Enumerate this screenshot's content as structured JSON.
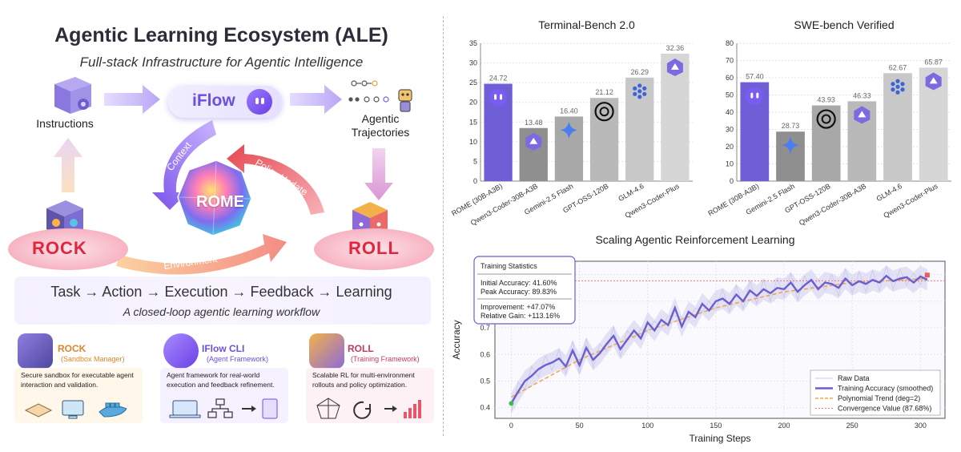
{
  "ecosystem": {
    "title": "Agentic Learning Ecosystem (ALE)",
    "subtitle": "Full-stack Infrastructure for Agentic Intelligence",
    "nodes": {
      "instructions": "Instructions",
      "iflow": "iFlow",
      "trajectories_line1": "Agentic",
      "trajectories_line2": "Trajectories",
      "rome": "ROME",
      "rock": "ROCK",
      "roll": "ROLL"
    },
    "arrows": {
      "context": "Context",
      "policy_update": "Policy Update",
      "environment": "Environment"
    },
    "workflow": "Task → Action → Execution → Feedback → Learning",
    "workflow_caption": "A closed-loop agentic learning workflow",
    "cards": [
      {
        "title": "ROCK",
        "subtitle": "(Sandbox Manager)",
        "desc": "Secure sandbox for executable agent interaction and validation.",
        "color": "#f4a340",
        "bg": "#fde7c7"
      },
      {
        "title": "IFlow CLI",
        "subtitle": "(Agent Framework)",
        "desc": "Agent framework for real-world execution and feedback refinement.",
        "color": "#6a4fe0",
        "bg": "#e6dcfb"
      },
      {
        "title": "ROLL",
        "subtitle": "(Training Framework)",
        "desc": "Scalable RL for multi-environment rollouts and policy optimization.",
        "color": "#c23a5a",
        "bg": "#f8d3dd"
      }
    ]
  },
  "chart_data": [
    {
      "type": "bar",
      "title": "Terminal-Bench 2.0",
      "categories": [
        "ROME (30B-A3B)",
        "Qwen3-Coder-30B-A3B",
        "Gemini-2.5 Flash",
        "GPT-OSS-120B",
        "GLM-4.6",
        "Qwen3-Coder-Plus"
      ],
      "values": [
        24.72,
        13.48,
        16.4,
        21.12,
        26.29,
        32.36
      ],
      "value_labels": [
        "24.72",
        "13.48",
        "16.40",
        "21.12",
        "26.29",
        "32.36"
      ],
      "colors": [
        "#6f5fd6",
        "#8f8f8f",
        "#a8a8a8",
        "#b9b9b9",
        "#c8c8c8",
        "#d6d6d6"
      ],
      "icons": [
        "iflow-icon",
        "qwen-icon",
        "gemini-icon",
        "openai-icon",
        "glm-icon",
        "qwen-icon"
      ],
      "ylim": [
        0,
        35
      ],
      "yticks": [
        0,
        5,
        10,
        15,
        20,
        25,
        30,
        35
      ],
      "grid": true
    },
    {
      "type": "bar",
      "title": "SWE-bench Verified",
      "categories": [
        "ROME (30B-A3B)",
        "Gemini-2.5 Flash",
        "GPT-OSS-120B",
        "Qwen3-Coder-30B-A3B",
        "GLM-4.6",
        "Qwen3-Coder-Plus"
      ],
      "values": [
        57.4,
        28.73,
        43.93,
        46.33,
        62.67,
        65.87
      ],
      "value_labels": [
        "57.40",
        "28.73",
        "43.93",
        "46.33",
        "62.67",
        "65.87"
      ],
      "colors": [
        "#6f5fd6",
        "#8f8f8f",
        "#a8a8a8",
        "#b9b9b9",
        "#c8c8c8",
        "#d6d6d6"
      ],
      "icons": [
        "iflow-icon",
        "gemini-icon",
        "openai-icon",
        "qwen-icon",
        "glm-icon",
        "qwen-icon"
      ],
      "ylim": [
        0,
        80
      ],
      "yticks": [
        0,
        10,
        20,
        30,
        40,
        50,
        60,
        70,
        80
      ],
      "grid": true
    },
    {
      "type": "line",
      "title": "Scaling Agentic Reinforcement Learning",
      "xlabel": "Training Steps",
      "ylabel": "Accuracy",
      "xlim": [
        -12,
        318
      ],
      "ylim": [
        0.36,
        0.95
      ],
      "xticks": [
        0,
        50,
        100,
        150,
        200,
        250,
        300
      ],
      "yticks": [
        0.4,
        0.5,
        0.6,
        0.7,
        0.8,
        0.9
      ],
      "convergence": 0.8768,
      "series": [
        {
          "name": "Raw Data",
          "color": "#c8c6ec"
        },
        {
          "name": "Training Accuracy (smoothed)",
          "color": "#6b5fd0",
          "x": [
            0,
            5,
            10,
            15,
            20,
            25,
            30,
            35,
            40,
            45,
            50,
            55,
            60,
            65,
            70,
            75,
            80,
            85,
            90,
            95,
            100,
            105,
            110,
            115,
            120,
            125,
            130,
            135,
            140,
            145,
            150,
            155,
            160,
            165,
            170,
            175,
            180,
            185,
            190,
            195,
            200,
            205,
            210,
            215,
            220,
            225,
            230,
            235,
            240,
            245,
            250,
            255,
            260,
            265,
            270,
            275,
            280,
            285,
            290,
            295,
            300,
            305
          ],
          "y": [
            0.416,
            0.46,
            0.5,
            0.52,
            0.545,
            0.56,
            0.57,
            0.585,
            0.555,
            0.615,
            0.56,
            0.625,
            0.58,
            0.605,
            0.64,
            0.67,
            0.62,
            0.655,
            0.69,
            0.66,
            0.72,
            0.69,
            0.73,
            0.71,
            0.775,
            0.705,
            0.76,
            0.74,
            0.79,
            0.765,
            0.8,
            0.81,
            0.79,
            0.825,
            0.8,
            0.84,
            0.82,
            0.845,
            0.83,
            0.85,
            0.845,
            0.87,
            0.835,
            0.86,
            0.88,
            0.845,
            0.87,
            0.865,
            0.85,
            0.885,
            0.86,
            0.875,
            0.865,
            0.88,
            0.87,
            0.895,
            0.875,
            0.885,
            0.89,
            0.87,
            0.893,
            0.88
          ]
        },
        {
          "name": "Polynomial Trend (deg=2)",
          "color": "#f0a550",
          "x": [
            0,
            50,
            100,
            150,
            200,
            250,
            305
          ],
          "y": [
            0.44,
            0.58,
            0.69,
            0.775,
            0.835,
            0.87,
            0.885
          ]
        },
        {
          "name": "Convergence Value (87.68%)",
          "color": "#e87a7a"
        }
      ],
      "stats": {
        "title": "Training Statistics",
        "initial": "Initial Accuracy: 41.60%",
        "peak": "Peak Accuracy:   89.83%",
        "improvement": "Improvement: +47.07%",
        "relative": "Relative Gain: +113.16%"
      }
    }
  ]
}
